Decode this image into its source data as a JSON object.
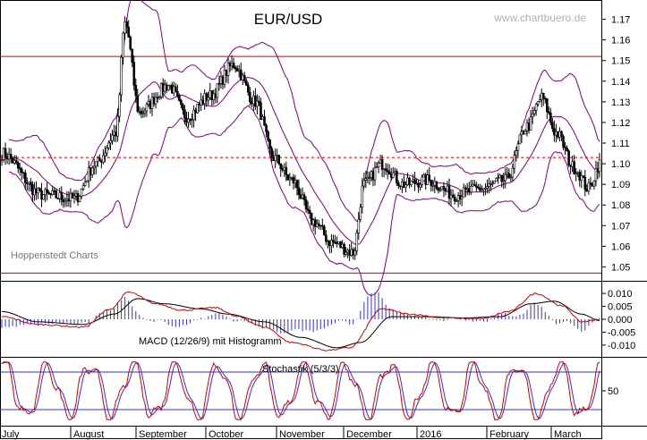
{
  "chart_data": [
    {
      "type": "candlestick",
      "title": "EUR/USD",
      "watermark": "www.chartbuero.de",
      "source_label": "Hoppenstedt Charts",
      "y_ticks": [
        "1.17",
        "1.16",
        "1.15",
        "1.14",
        "1.13",
        "1.12",
        "1.11",
        "1.10",
        "1.09",
        "1.08",
        "1.07",
        "1.06",
        "1.05"
      ],
      "ylim": [
        1.045,
        1.175
      ],
      "horizontal_lines": [
        {
          "value": 1.152,
          "style": "solid",
          "color": "#cc0000"
        },
        {
          "value": 1.103,
          "style": "dashed",
          "color": "#cc0000"
        },
        {
          "value": 1.047,
          "style": "solid",
          "color": "#cc0000"
        }
      ],
      "bollinger_color": "#800080",
      "key_points": [
        {
          "x": 0,
          "close": 1.105
        },
        {
          "x": 22,
          "close": 1.085
        },
        {
          "x": 40,
          "close": 1.083
        },
        {
          "x": 52,
          "close": 1.1
        },
        {
          "x": 63,
          "close": 1.115
        },
        {
          "x": 68,
          "close": 1.168
        },
        {
          "x": 76,
          "close": 1.125
        },
        {
          "x": 92,
          "close": 1.138
        },
        {
          "x": 102,
          "close": 1.123
        },
        {
          "x": 115,
          "close": 1.133
        },
        {
          "x": 128,
          "close": 1.148
        },
        {
          "x": 140,
          "close": 1.13
        },
        {
          "x": 150,
          "close": 1.103
        },
        {
          "x": 160,
          "close": 1.092
        },
        {
          "x": 172,
          "close": 1.072
        },
        {
          "x": 182,
          "close": 1.062
        },
        {
          "x": 194,
          "close": 1.057
        },
        {
          "x": 200,
          "close": 1.09
        },
        {
          "x": 210,
          "close": 1.1
        },
        {
          "x": 222,
          "close": 1.09
        },
        {
          "x": 235,
          "close": 1.092
        },
        {
          "x": 250,
          "close": 1.085
        },
        {
          "x": 265,
          "close": 1.088
        },
        {
          "x": 278,
          "close": 1.092
        },
        {
          "x": 290,
          "close": 1.118
        },
        {
          "x": 298,
          "close": 1.132
        },
        {
          "x": 306,
          "close": 1.115
        },
        {
          "x": 316,
          "close": 1.098
        },
        {
          "x": 324,
          "close": 1.088
        },
        {
          "x": 330,
          "close": 1.1
        }
      ]
    },
    {
      "type": "line",
      "title": "MACD (12/26/9) mit Histogramm",
      "y_ticks": [
        "0.010",
        "0.005",
        "0.000",
        "-0.005",
        "-0.010"
      ],
      "ylim": [
        -0.0135,
        0.0135
      ],
      "series": [
        {
          "color": "#cc0000",
          "key_points": [
            [
              0,
              0.001
            ],
            [
              20,
              -0.002
            ],
            [
              45,
              -0.003
            ],
            [
              60,
              0.004
            ],
            [
              70,
              0.0105
            ],
            [
              85,
              0.006
            ],
            [
              100,
              0.0035
            ],
            [
              118,
              0.0045
            ],
            [
              130,
              0.001
            ],
            [
              145,
              -0.003
            ],
            [
              160,
              -0.009
            ],
            [
              180,
              -0.012
            ],
            [
              192,
              -0.011
            ],
            [
              210,
              0.004
            ],
            [
              225,
              0.002
            ],
            [
              245,
              0.0005
            ],
            [
              265,
              0.0002
            ],
            [
              280,
              0.003
            ],
            [
              295,
              0.01
            ],
            [
              310,
              0.005
            ],
            [
              320,
              -0.001
            ],
            [
              330,
              0.0
            ]
          ]
        },
        {
          "color": "#000000",
          "key_points": [
            [
              0,
              0.003
            ],
            [
              20,
              -0.001
            ],
            [
              45,
              -0.002
            ],
            [
              62,
              0.002
            ],
            [
              75,
              0.008
            ],
            [
              90,
              0.006
            ],
            [
              110,
              0.004
            ],
            [
              125,
              0.002
            ],
            [
              145,
              -0.001
            ],
            [
              165,
              -0.007
            ],
            [
              185,
              -0.011
            ],
            [
              198,
              -0.009
            ],
            [
              215,
              0.001
            ],
            [
              235,
              0.001
            ],
            [
              255,
              0.0005
            ],
            [
              275,
              0.001
            ],
            [
              292,
              0.006
            ],
            [
              305,
              0.007
            ],
            [
              320,
              0.002
            ],
            [
              330,
              -0.0005
            ]
          ]
        }
      ],
      "histogram_color": "#3333cc"
    },
    {
      "type": "line",
      "title": "Stochastik (5/3/3)",
      "y_ticks": [
        "50"
      ],
      "ylim": [
        0,
        100
      ],
      "horizontal_lines": [
        {
          "value": 80
        },
        {
          "value": 20
        }
      ],
      "series": [
        {
          "color": "#cc0000",
          "cycles": 14
        },
        {
          "color": "#3333cc",
          "cycles": 14
        }
      ]
    }
  ],
  "x_axis": {
    "labels": [
      "July",
      "August",
      "September",
      "October",
      "November",
      "December",
      "2016",
      "February",
      "March"
    ]
  }
}
